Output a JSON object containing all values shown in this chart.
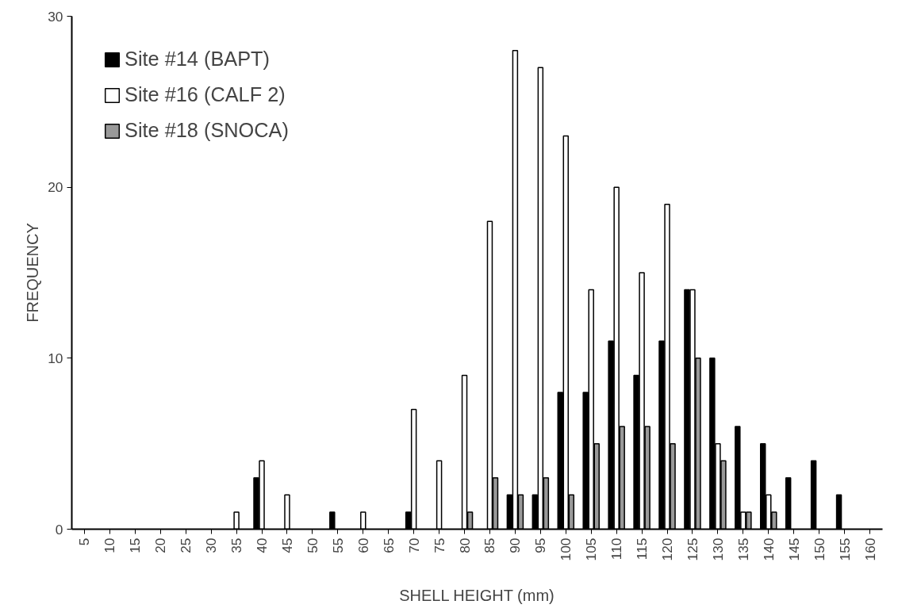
{
  "chart_data": {
    "type": "bar",
    "xlabel": "SHELL HEIGHT (mm)",
    "ylabel": "FREQUENCY",
    "categories": [
      "5",
      "10",
      "15",
      "20",
      "25",
      "30",
      "35",
      "40",
      "45",
      "50",
      "55",
      "60",
      "65",
      "70",
      "75",
      "80",
      "85",
      "90",
      "95",
      "100",
      "105",
      "110",
      "115",
      "120",
      "125",
      "130",
      "135",
      "140",
      "145",
      "150",
      "155",
      "160"
    ],
    "series": [
      {
        "name": "Site #14 (BAPT)",
        "color": "#000000",
        "values": [
          0,
          0,
          0,
          0,
          0,
          0,
          0,
          3,
          0,
          0,
          1,
          0,
          0,
          1,
          0,
          0,
          0,
          2,
          2,
          8,
          8,
          11,
          9,
          11,
          14,
          10,
          6,
          5,
          3,
          4,
          2,
          0
        ]
      },
      {
        "name": "Site #16 (CALF 2)",
        "color": "#ffffff",
        "values": [
          0,
          0,
          0,
          0,
          0,
          0,
          1,
          4,
          2,
          0,
          0,
          1,
          0,
          7,
          4,
          9,
          18,
          28,
          27,
          23,
          14,
          20,
          15,
          19,
          14,
          5,
          1,
          2,
          0,
          0,
          0,
          0
        ]
      },
      {
        "name": "Site #18 (SNOCA)",
        "color": "#999999",
        "values": [
          0,
          0,
          0,
          0,
          0,
          0,
          0,
          0,
          0,
          0,
          0,
          0,
          0,
          0,
          0,
          1,
          3,
          2,
          3,
          2,
          5,
          6,
          6,
          5,
          10,
          4,
          1,
          1,
          0,
          0,
          0,
          0
        ]
      }
    ],
    "ylim": [
      0,
      30
    ],
    "yticks": [
      0,
      10,
      20,
      30
    ],
    "grid": false,
    "legend": "top left"
  }
}
